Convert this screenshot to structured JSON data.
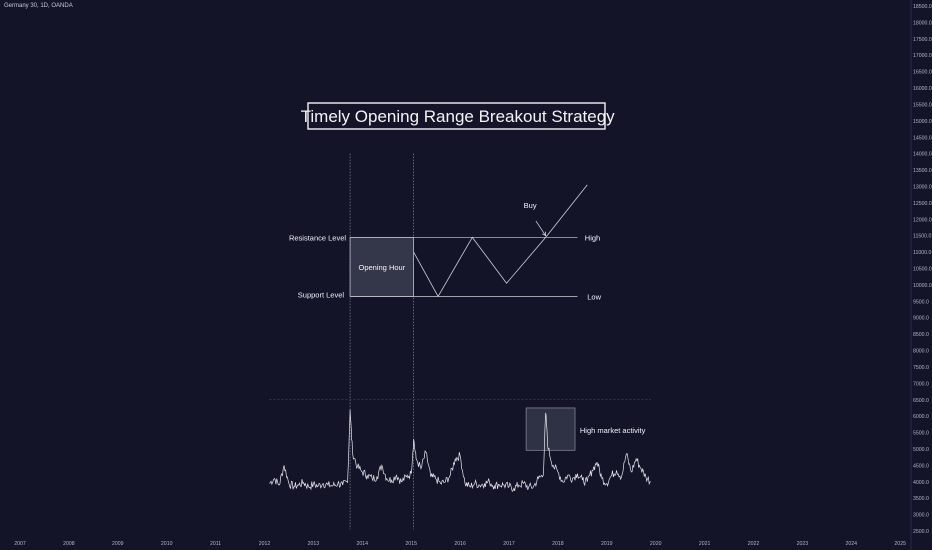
{
  "chart_data": {
    "type": "line",
    "symbol": "Germany 30, 1D, OANDA",
    "title": "Timely Opening Range Breakout Strategy",
    "x_ticks": [
      "2007",
      "2008",
      "2009",
      "2010",
      "2011",
      "2012",
      "2013",
      "2014",
      "2015",
      "2016",
      "2017",
      "2018",
      "2019",
      "2020",
      "2021",
      "2022",
      "2023",
      "2024",
      "2025"
    ],
    "y_ticks": [
      "2500.0",
      "3000.0",
      "3500.0",
      "4000.0",
      "4500.0",
      "5000.0",
      "5500.0",
      "6000.0",
      "6500.0",
      "7000.0",
      "7500.0",
      "8000.0",
      "8500.0",
      "9000.0",
      "9500.0",
      "10000.0",
      "10500.0",
      "11000.0",
      "11500.0",
      "12000.0",
      "12500.0",
      "13000.0",
      "13500.0",
      "14000.0",
      "14500.0",
      "15000.0",
      "15500.0",
      "16000.0",
      "16500.0",
      "17000.0",
      "17500.0",
      "18000.0",
      "18500.0"
    ],
    "ylim": [
      2500,
      18500
    ],
    "grid": false,
    "annotations": {
      "resistance": "Resistance Level",
      "support": "Support Level",
      "opening_hour": "Opening Hour",
      "high": "High",
      "low": "Low",
      "buy": "Buy",
      "activity": "High market activity"
    },
    "diagram": {
      "high_level": 11450,
      "low_level": 9650,
      "opening_box": {
        "x": [
          2013.75,
          2015.05
        ],
        "y": [
          9650,
          11450
        ]
      },
      "zigzag": [
        [
          2015.05,
          11000
        ],
        [
          2015.55,
          9650
        ],
        [
          2016.25,
          11450
        ],
        [
          2016.95,
          10050
        ],
        [
          2017.75,
          11450
        ],
        [
          2018.6,
          13050
        ]
      ],
      "buy_arrow": {
        "from": [
          2017.55,
          11950
        ],
        "to": [
          2017.75,
          11500
        ]
      },
      "vlines": [
        2013.75,
        2015.05
      ],
      "activity_box": {
        "x": [
          2017.35,
          2018.35
        ],
        "y": [
          4960,
          6250
        ]
      },
      "oscillator_baseline": 6500
    },
    "series": [
      {
        "x": [
          2012.1,
          2012.2,
          2012.3,
          2012.4,
          2012.5,
          2012.6,
          2012.7,
          2012.8,
          2012.9,
          2013.0,
          2013.1,
          2013.2,
          2013.3,
          2013.4,
          2013.5,
          2013.6,
          2013.7,
          2013.75,
          2013.8,
          2013.9,
          2014.0,
          2014.1,
          2014.2,
          2014.3,
          2014.4,
          2014.5,
          2014.6,
          2014.7,
          2014.8,
          2014.9,
          2015.0,
          2015.05,
          2015.1,
          2015.2,
          2015.3,
          2015.4,
          2015.5,
          2015.6,
          2015.7,
          2015.8,
          2015.9,
          2016.0,
          2016.1,
          2016.2,
          2016.3,
          2016.4,
          2016.5,
          2016.6,
          2016.7,
          2016.8,
          2016.9,
          2017.0,
          2017.1,
          2017.2,
          2017.3,
          2017.4,
          2017.5,
          2017.6,
          2017.7,
          2017.75,
          2017.8,
          2017.9,
          2018.0,
          2018.1,
          2018.2,
          2018.3,
          2018.4,
          2018.5,
          2018.6,
          2018.7,
          2018.8,
          2018.9,
          2019.0,
          2019.1,
          2019.2,
          2019.3,
          2019.4,
          2019.5,
          2019.6,
          2019.7,
          2019.8,
          2019.9
        ],
        "values": [
          3950,
          4100,
          3900,
          4500,
          3950,
          3850,
          3900,
          3980,
          3850,
          3920,
          3870,
          3950,
          3900,
          3880,
          3950,
          3900,
          3980,
          6200,
          4900,
          4450,
          4300,
          4200,
          4100,
          4150,
          4500,
          4100,
          4050,
          4200,
          4000,
          4150,
          4250,
          5300,
          4700,
          4400,
          4900,
          4150,
          4100,
          3950,
          4000,
          4200,
          4700,
          4800,
          3950,
          3850,
          3950,
          3900,
          3950,
          4000,
          3870,
          3920,
          3900,
          3850,
          3800,
          3900,
          3950,
          3830,
          3850,
          4100,
          4200,
          6100,
          5000,
          4500,
          4300,
          4000,
          4200,
          4100,
          4250,
          4050,
          4000,
          4350,
          4600,
          4100,
          3950,
          4200,
          4350,
          4150,
          4850,
          4300,
          4700,
          4400,
          4150,
          4000
        ]
      }
    ]
  }
}
